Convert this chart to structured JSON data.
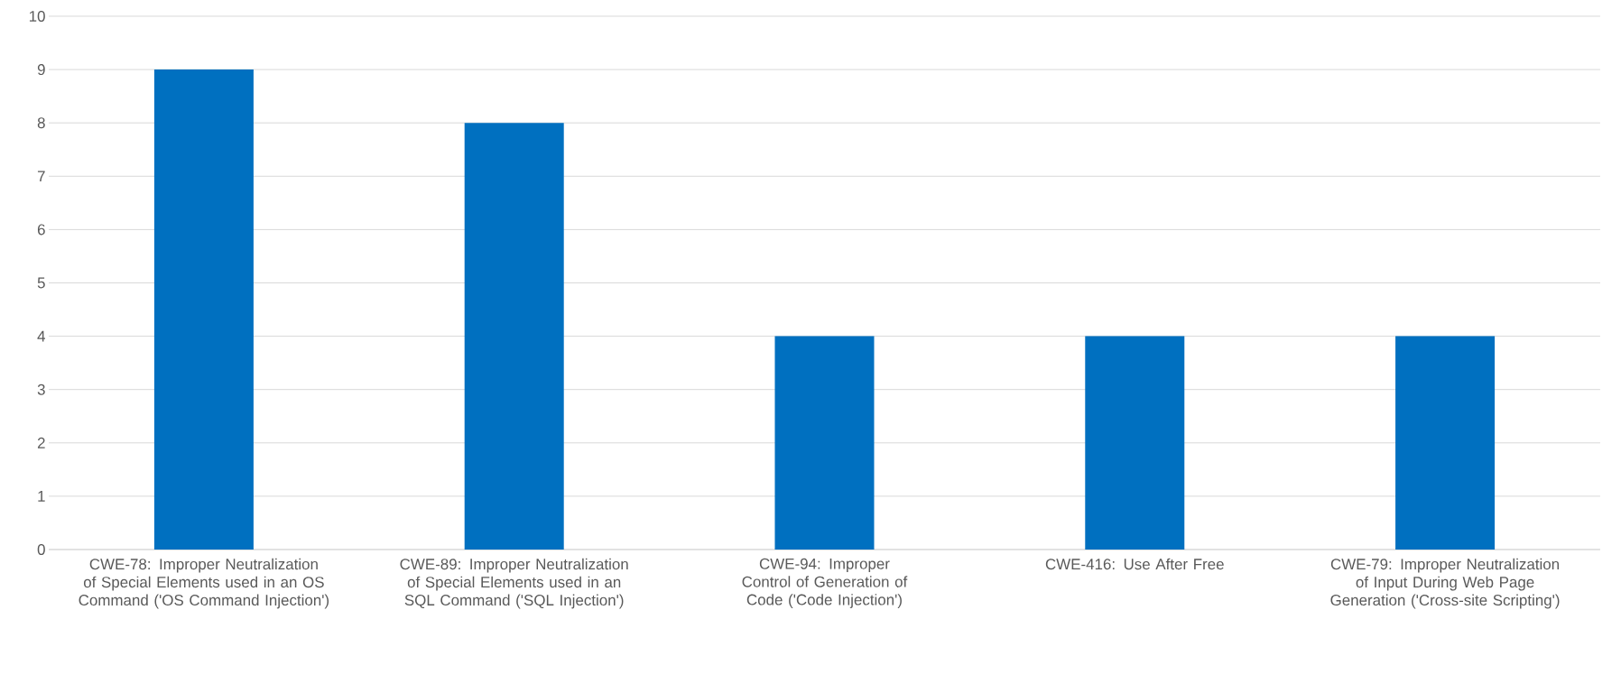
{
  "chart_data": {
    "type": "bar",
    "categories": [
      "CWE-78: Improper Neutralization of Special Elements used in an OS Command ('OS Command Injection')",
      "CWE-89: Improper Neutralization of Special Elements used in an SQL Command ('SQL Injection')",
      "CWE-94: Improper Control of Generation of Code ('Code Injection')",
      "CWE-416: Use After Free",
      "CWE-79: Improper Neutralization of Input During Web Page Generation ('Cross-site Scripting')"
    ],
    "values": [
      9,
      8,
      4,
      4,
      4
    ],
    "color": "#0070c0",
    "ylim": [
      0,
      10
    ],
    "yticks": [
      0,
      1,
      2,
      3,
      4,
      5,
      6,
      7,
      8,
      9,
      10
    ],
    "grid": "y"
  }
}
